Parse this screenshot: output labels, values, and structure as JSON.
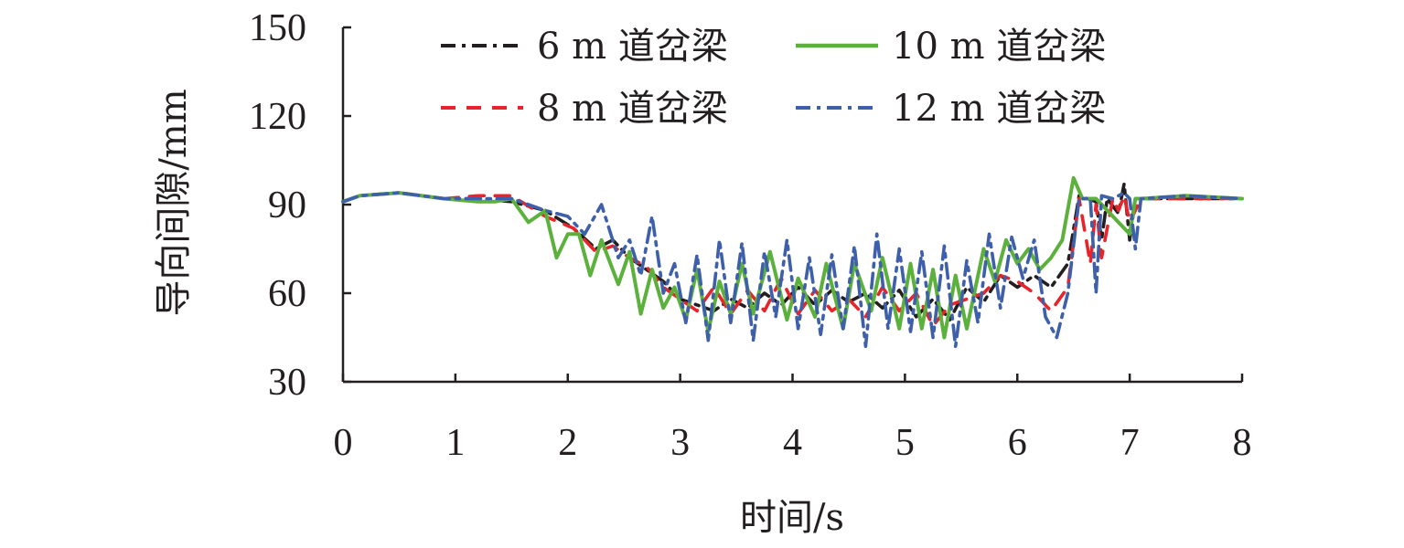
{
  "chart_data": {
    "type": "line",
    "title": "",
    "xlabel": "时间/s",
    "ylabel": "导向间隙/mm",
    "xlim": [
      0,
      8
    ],
    "ylim": [
      30,
      150
    ],
    "xticks": [
      0,
      1,
      2,
      3,
      4,
      5,
      6,
      7,
      8
    ],
    "yticks": [
      30,
      60,
      90,
      120,
      150
    ],
    "grid": false,
    "legend_position": "top",
    "series": [
      {
        "name": "6 m 道岔梁",
        "color": "#231f20",
        "dash": "dashdot",
        "x": [
          0,
          0.15,
          0.5,
          0.9,
          1.2,
          1.5,
          1.8,
          2.05,
          2.25,
          2.4,
          2.55,
          2.7,
          2.85,
          3.0,
          3.15,
          3.3,
          3.45,
          3.6,
          3.75,
          3.9,
          4.05,
          4.2,
          4.35,
          4.5,
          4.65,
          4.8,
          4.95,
          5.1,
          5.25,
          5.4,
          5.55,
          5.7,
          5.85,
          6.0,
          6.15,
          6.3,
          6.45,
          6.55,
          6.7,
          6.75,
          6.8,
          6.9,
          6.95,
          7.0,
          7.05,
          7.1,
          7.5,
          8.0
        ],
        "y": [
          91,
          93,
          94,
          92,
          92,
          91,
          88,
          82,
          75,
          78,
          72,
          68,
          64,
          58,
          56,
          54,
          58,
          55,
          60,
          56,
          62,
          56,
          61,
          57,
          60,
          55,
          61,
          52,
          58,
          51,
          62,
          57,
          66,
          62,
          66,
          62,
          70,
          93,
          91,
          78,
          92,
          87,
          97,
          78,
          92,
          92,
          92,
          92
        ]
      },
      {
        "name": "8 m 道岔梁",
        "color": "#e8242b",
        "dash": "dashed",
        "x": [
          0,
          0.15,
          0.5,
          0.9,
          1.2,
          1.5,
          1.8,
          2.05,
          2.25,
          2.4,
          2.55,
          2.7,
          2.85,
          3.0,
          3.15,
          3.3,
          3.45,
          3.6,
          3.75,
          3.9,
          4.05,
          4.2,
          4.35,
          4.5,
          4.65,
          4.8,
          4.95,
          5.1,
          5.25,
          5.4,
          5.55,
          5.7,
          5.85,
          6.0,
          6.15,
          6.3,
          6.45,
          6.55,
          6.65,
          6.7,
          6.75,
          6.85,
          6.9,
          6.95,
          7.0,
          7.1,
          7.5,
          8.0
        ],
        "y": [
          91,
          93,
          94,
          92,
          93,
          93,
          86,
          82,
          74,
          76,
          72,
          69,
          62,
          58,
          54,
          62,
          53,
          61,
          54,
          65,
          53,
          61,
          54,
          58,
          52,
          62,
          54,
          60,
          49,
          56,
          58,
          60,
          66,
          64,
          60,
          54,
          62,
          92,
          70,
          90,
          72,
          92,
          88,
          93,
          84,
          92,
          92,
          92
        ]
      },
      {
        "name": "10 m 道岔梁",
        "color": "#5cb13c",
        "dash": "solid",
        "x": [
          0,
          0.15,
          0.5,
          0.9,
          1.2,
          1.35,
          1.5,
          1.65,
          1.8,
          1.9,
          2.0,
          2.1,
          2.2,
          2.3,
          2.45,
          2.55,
          2.65,
          2.75,
          2.85,
          2.95,
          3.05,
          3.15,
          3.25,
          3.35,
          3.45,
          3.55,
          3.65,
          3.8,
          3.95,
          4.05,
          4.2,
          4.3,
          4.45,
          4.55,
          4.7,
          4.8,
          4.95,
          5.05,
          5.15,
          5.25,
          5.35,
          5.45,
          5.55,
          5.7,
          5.8,
          5.9,
          6.0,
          6.1,
          6.2,
          6.3,
          6.4,
          6.5,
          6.58,
          6.7,
          7.0,
          7.05,
          7.1,
          7.5,
          8.0
        ],
        "y": [
          91,
          93,
          94,
          92,
          91,
          91,
          92,
          84,
          88,
          72,
          80,
          80,
          66,
          78,
          63,
          74,
          53,
          68,
          55,
          62,
          51,
          68,
          47,
          64,
          53,
          70,
          53,
          74,
          51,
          65,
          52,
          70,
          48,
          70,
          54,
          72,
          48,
          70,
          48,
          68,
          45,
          66,
          48,
          75,
          64,
          78,
          70,
          75,
          68,
          72,
          78,
          99,
          92,
          92,
          80,
          92,
          92,
          93,
          92
        ]
      },
      {
        "name": "12 m 道岔梁",
        "color": "#3e5fa9",
        "dash": "dashdot",
        "x": [
          0,
          0.15,
          0.5,
          0.9,
          1.2,
          1.5,
          1.8,
          2.0,
          2.15,
          2.3,
          2.45,
          2.55,
          2.65,
          2.75,
          2.85,
          2.95,
          3.05,
          3.15,
          3.25,
          3.35,
          3.45,
          3.55,
          3.65,
          3.75,
          3.85,
          3.95,
          4.05,
          4.15,
          4.25,
          4.35,
          4.45,
          4.55,
          4.65,
          4.75,
          4.85,
          4.95,
          5.05,
          5.15,
          5.25,
          5.35,
          5.45,
          5.55,
          5.65,
          5.75,
          5.85,
          5.95,
          6.05,
          6.15,
          6.25,
          6.35,
          6.45,
          6.55,
          6.65,
          6.7,
          6.75,
          6.85,
          6.95,
          7.0,
          7.05,
          7.1,
          7.5,
          8.0
        ],
        "y": [
          91,
          93,
          94,
          92,
          92,
          92,
          88,
          86,
          80,
          90,
          72,
          78,
          66,
          86,
          60,
          70,
          50,
          73,
          44,
          78,
          50,
          77,
          44,
          74,
          52,
          78,
          48,
          72,
          46,
          73,
          48,
          76,
          42,
          80,
          48,
          75,
          47,
          74,
          45,
          76,
          42,
          71,
          50,
          80,
          55,
          79,
          65,
          78,
          52,
          45,
          60,
          92,
          92,
          60,
          93,
          92,
          94,
          92,
          75,
          92,
          93,
          92
        ]
      }
    ]
  }
}
